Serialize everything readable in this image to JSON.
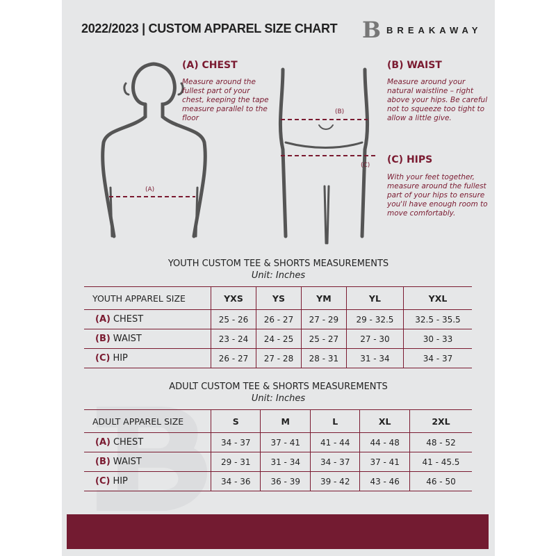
{
  "header": {
    "title": "2022/2023  |  CUSTOM APPAREL SIZE CHART",
    "brand": "BREAKAWAY",
    "logo_letter": "B"
  },
  "guides": [
    {
      "title": "(A) CHEST",
      "text": "Measure around the fullest part of your chest, keeping the tape measure parallel to the floor",
      "marker": "(A)"
    },
    {
      "title": "(B) WAIST",
      "text": "Measure around your natural waistline – right above your hips. Be careful not to squeeze too tight to allow a little give.",
      "marker": "(B)"
    },
    {
      "title": "(C) HIPS",
      "text": "With your feet together, measure around the fullest part of your hips to ensure you'll have enough room to move comfortably.",
      "marker": "(C)"
    }
  ],
  "youth": {
    "title": "YOUTH CUSTOM TEE & SHORTS MEASUREMENTS",
    "unit": "Unit: Inches",
    "header": [
      "YOUTH APPAREL SIZE",
      "YXS",
      "YS",
      "YM",
      "YL",
      "YXL"
    ],
    "rows": [
      {
        "tag": "(A)",
        "label": "CHEST",
        "values": [
          "25 - 26",
          "26 - 27",
          "27 - 29",
          "29 - 32.5",
          "32.5 - 35.5"
        ]
      },
      {
        "tag": "(B)",
        "label": "WAIST",
        "values": [
          "23 - 24",
          "24 - 25",
          "25 - 27",
          "27 - 30",
          "30 - 33"
        ]
      },
      {
        "tag": "(C)",
        "label": "HIP",
        "values": [
          "26 - 27",
          "27 - 28",
          "28 - 31",
          "31 - 34",
          "34 - 37"
        ]
      }
    ]
  },
  "adult": {
    "title": "ADULT CUSTOM TEE & SHORTS MEASUREMENTS",
    "unit": "Unit: Inches",
    "header": [
      "ADULT APPAREL SIZE",
      "S",
      "M",
      "L",
      "XL",
      "2XL"
    ],
    "rows": [
      {
        "tag": "(A)",
        "label": "CHEST",
        "values": [
          "34 - 37",
          "37 - 41",
          "41 - 44",
          "44 - 48",
          "48 - 52"
        ]
      },
      {
        "tag": "(B)",
        "label": "WAIST",
        "values": [
          "29 - 31",
          "31 - 34",
          "34 - 37",
          "37 - 41",
          "41 - 45.5"
        ]
      },
      {
        "tag": "(C)",
        "label": "HIP",
        "values": [
          "34 - 36",
          "36 - 39",
          "39 - 42",
          "43 - 46",
          "46 - 50"
        ]
      }
    ]
  },
  "colors": {
    "accent": "#7a1a30",
    "background": "#e6e7e8",
    "footer": "#731b31"
  }
}
